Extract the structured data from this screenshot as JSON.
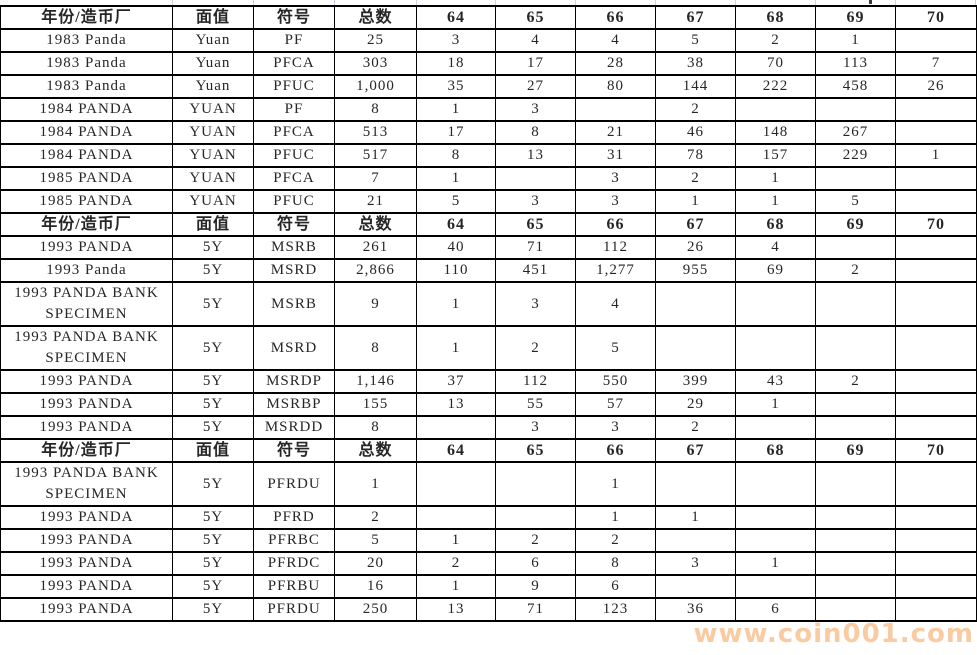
{
  "table": {
    "columns": [
      {
        "key": "year-mint",
        "label": "年份/造币厂"
      },
      {
        "key": "denomination",
        "label": "面值"
      },
      {
        "key": "symbol",
        "label": "符号"
      },
      {
        "key": "total",
        "label": "总数"
      },
      {
        "key": "64",
        "label": "64"
      },
      {
        "key": "65",
        "label": "65"
      },
      {
        "key": "66",
        "label": "66"
      },
      {
        "key": "67",
        "label": "67"
      },
      {
        "key": "68",
        "label": "68"
      },
      {
        "key": "69",
        "label": "69"
      },
      {
        "key": "70",
        "label": "70"
      }
    ],
    "sections": [
      {
        "rows": [
          [
            "1983 Panda",
            "Yuan",
            "PF",
            "25",
            "3",
            "4",
            "4",
            "5",
            "2",
            "1",
            ""
          ],
          [
            "1983 Panda",
            "Yuan",
            "PFCA",
            "303",
            "18",
            "17",
            "28",
            "38",
            "70",
            "113",
            "7"
          ],
          [
            "1983 Panda",
            "Yuan",
            "PFUC",
            "1,000",
            "35",
            "27",
            "80",
            "144",
            "222",
            "458",
            "26"
          ],
          [
            "1984 PANDA",
            "YUAN",
            "PF",
            "8",
            "1",
            "3",
            "",
            "2",
            "",
            "",
            ""
          ],
          [
            "1984 PANDA",
            "YUAN",
            "PFCA",
            "513",
            "17",
            "8",
            "21",
            "46",
            "148",
            "267",
            ""
          ],
          [
            "1984 PANDA",
            "YUAN",
            "PFUC",
            "517",
            "8",
            "13",
            "31",
            "78",
            "157",
            "229",
            "1"
          ],
          [
            "1985 PANDA",
            "YUAN",
            "PFCA",
            "7",
            "1",
            "",
            "3",
            "2",
            "1",
            "",
            ""
          ],
          [
            "1985 PANDA",
            "YUAN",
            "PFUC",
            "21",
            "5",
            "3",
            "3",
            "1",
            "1",
            "5",
            ""
          ]
        ]
      },
      {
        "rows": [
          [
            "1993 PANDA",
            "5Y",
            "MSRB",
            "261",
            "40",
            "71",
            "112",
            "26",
            "4",
            "",
            ""
          ],
          [
            "1993 Panda",
            "5Y",
            "MSRD",
            "2,866",
            "110",
            "451",
            "1,277",
            "955",
            "69",
            "2",
            ""
          ],
          [
            "1993 PANDA BANK SPECIMEN",
            "5Y",
            "MSRB",
            "9",
            "1",
            "3",
            "4",
            "",
            "",
            "",
            ""
          ],
          [
            "1993 PANDA BANK SPECIMEN",
            "5Y",
            "MSRD",
            "8",
            "1",
            "2",
            "5",
            "",
            "",
            "",
            ""
          ],
          [
            "1993 PANDA",
            "5Y",
            "MSRDP",
            "1,146",
            "37",
            "112",
            "550",
            "399",
            "43",
            "2",
            ""
          ],
          [
            "1993 PANDA",
            "5Y",
            "MSRBP",
            "155",
            "13",
            "55",
            "57",
            "29",
            "1",
            "",
            ""
          ],
          [
            "1993 PANDA",
            "5Y",
            "MSRDD",
            "8",
            "",
            "3",
            "3",
            "2",
            "",
            "",
            ""
          ]
        ]
      },
      {
        "rows": [
          [
            "1993 PANDA BANK SPECIMEN",
            "5Y",
            "PFRDU",
            "1",
            "",
            "",
            "1",
            "",
            "",
            "",
            ""
          ],
          [
            "1993 PANDA",
            "5Y",
            "PFRD",
            "2",
            "",
            "",
            "1",
            "1",
            "",
            "",
            ""
          ],
          [
            "1993 PANDA",
            "5Y",
            "PFRBC",
            "5",
            "1",
            "2",
            "2",
            "",
            "",
            "",
            ""
          ],
          [
            "1993 PANDA",
            "5Y",
            "PFRDC",
            "20",
            "2",
            "6",
            "8",
            "3",
            "1",
            "",
            ""
          ],
          [
            "1993 PANDA",
            "5Y",
            "PFRBU",
            "16",
            "1",
            "9",
            "6",
            "",
            "",
            "",
            ""
          ],
          [
            "1993 PANDA",
            "5Y",
            "PFRDU",
            "250",
            "13",
            "71",
            "123",
            "36",
            "6",
            "",
            ""
          ]
        ]
      }
    ]
  },
  "watermark": {
    "text": "www.coin001.com",
    "color": "#f79646"
  }
}
